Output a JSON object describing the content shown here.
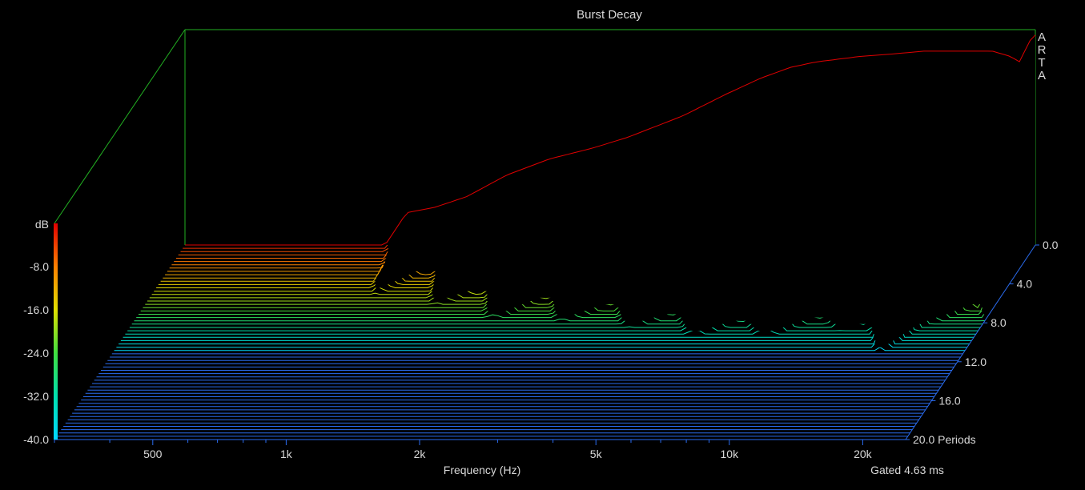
{
  "chart_data": {
    "type": "waterfall",
    "title": "Burst Decay",
    "brand": [
      "A",
      "R",
      "T",
      "A"
    ],
    "z_unit": "dB",
    "xlabel": "Frequency (Hz)",
    "x_scale": "log",
    "xlim": [
      300,
      25000
    ],
    "x_ticks": [
      {
        "value": 500,
        "label": "500"
      },
      {
        "value": 1000,
        "label": "1k"
      },
      {
        "value": 2000,
        "label": "2k"
      },
      {
        "value": 5000,
        "label": "5k"
      },
      {
        "value": 10000,
        "label": "10k"
      },
      {
        "value": 20000,
        "label": "20k"
      }
    ],
    "x_minor_ticks": [
      300,
      400,
      600,
      700,
      800,
      900,
      3000,
      4000,
      6000,
      7000,
      8000,
      9000
    ],
    "zlim": [
      -40,
      0
    ],
    "z_ticks": [
      {
        "value": -8,
        "label": "-8.0"
      },
      {
        "value": -16,
        "label": "-16.0"
      },
      {
        "value": -24,
        "label": "-24.0"
      },
      {
        "value": -32,
        "label": "-32.0"
      },
      {
        "value": -40,
        "label": "-40.0"
      }
    ],
    "depth_ticks": [
      {
        "value": 0,
        "label": "0.0"
      },
      {
        "value": 4,
        "label": "4.0"
      },
      {
        "value": 8,
        "label": "8.0"
      },
      {
        "value": 12,
        "label": "12.0"
      },
      {
        "value": 16,
        "label": "16.0"
      },
      {
        "value": 20,
        "label": "20.0 Periods"
      }
    ],
    "depth_max": 20,
    "slice_count": 60,
    "footnote": "Gated 4.63 ms",
    "profile": [
      {
        "f": 300,
        "db": -40
      },
      {
        "f": 850,
        "db": -40
      },
      {
        "f": 950,
        "db": -34
      },
      {
        "f": 1100,
        "db": -33
      },
      {
        "f": 1300,
        "db": -31
      },
      {
        "f": 1600,
        "db": -27
      },
      {
        "f": 2000,
        "db": -24
      },
      {
        "f": 2500,
        "db": -22
      },
      {
        "f": 3000,
        "db": -20
      },
      {
        "f": 4000,
        "db": -16
      },
      {
        "f": 5000,
        "db": -12
      },
      {
        "f": 6000,
        "db": -9
      },
      {
        "f": 7000,
        "db": -7
      },
      {
        "f": 8000,
        "db": -6
      },
      {
        "f": 10000,
        "db": -5
      },
      {
        "f": 12000,
        "db": -4.5
      },
      {
        "f": 14000,
        "db": -4
      },
      {
        "f": 17000,
        "db": -4
      },
      {
        "f": 20000,
        "db": -4
      },
      {
        "f": 22000,
        "db": -5
      },
      {
        "f": 23000,
        "db": -6
      },
      {
        "f": 24500,
        "db": -1.5
      },
      {
        "f": 25000,
        "db": -1
      }
    ],
    "colorscale": [
      "#00d8ff",
      "#00e0b0",
      "#40e040",
      "#e0e000",
      "#ff8000",
      "#e00000"
    ]
  }
}
